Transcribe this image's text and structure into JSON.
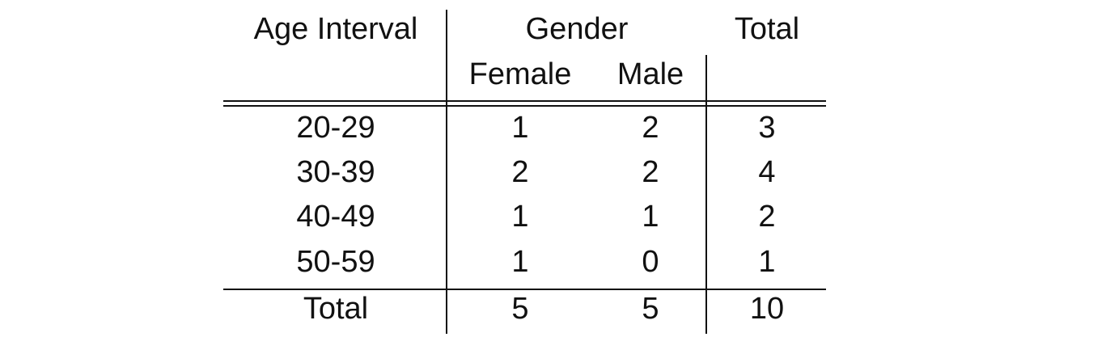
{
  "table": {
    "headers": {
      "age_interval": "Age Interval",
      "gender": "Gender",
      "total": "Total",
      "female": "Female",
      "male": "Male"
    },
    "rows": [
      [
        "20-29",
        1,
        2,
        3
      ],
      [
        "30-39",
        2,
        2,
        4
      ],
      [
        "40-49",
        1,
        1,
        2
      ],
      [
        "50-59",
        1,
        0,
        1
      ]
    ],
    "footer": [
      "Total",
      5,
      5,
      10
    ]
  }
}
